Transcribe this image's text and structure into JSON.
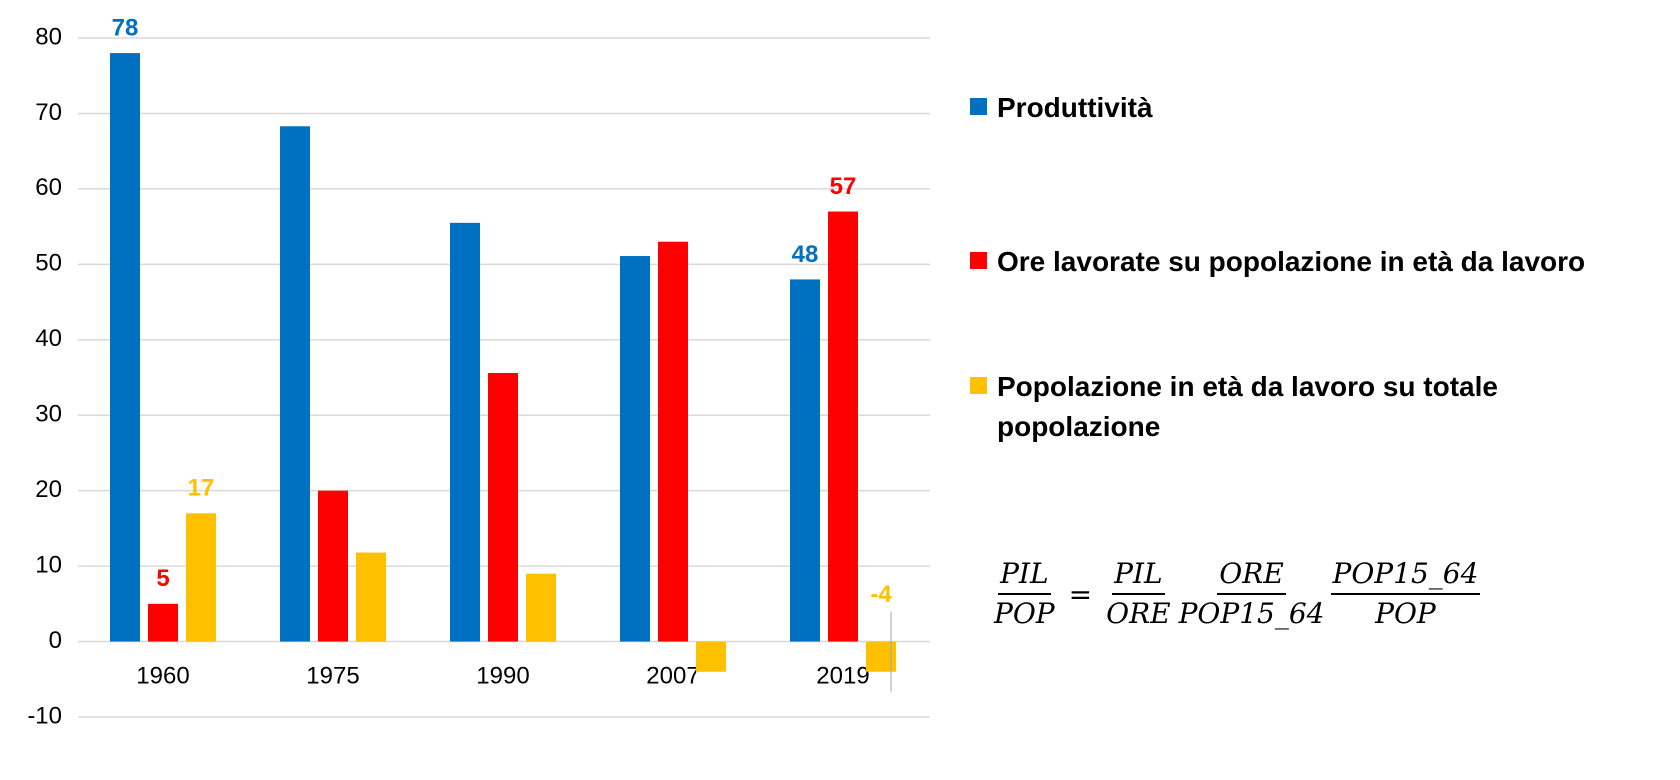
{
  "chart_data": {
    "type": "bar",
    "categories": [
      "1960",
      "1975",
      "1990",
      "2007",
      "2019"
    ],
    "series": [
      {
        "name": "Produttività",
        "color": "#0070c0",
        "values": [
          78,
          68.3,
          55.5,
          51.1,
          48
        ],
        "value_labels": [
          "78",
          null,
          null,
          null,
          "48"
        ]
      },
      {
        "name": "Ore lavorate su popolazione in età da lavoro",
        "color": "#ff0000",
        "values": [
          5,
          20,
          35.6,
          53,
          57
        ],
        "value_labels": [
          "5",
          null,
          null,
          null,
          "57"
        ]
      },
      {
        "name": "Popolazione in età da lavoro su totale popolazione",
        "color": "#ffc000",
        "values": [
          17,
          11.8,
          9,
          -4,
          -4
        ],
        "value_labels": [
          "17",
          null,
          null,
          null,
          "-4"
        ]
      }
    ],
    "ylim": [
      -10,
      80
    ],
    "yticks": [
      -10,
      0,
      10,
      20,
      30,
      40,
      50,
      60,
      70,
      80
    ],
    "grid": true,
    "legend": "right",
    "formula": {
      "lhs": {
        "num": "PIL",
        "den": "POP"
      },
      "equals": "=",
      "terms": [
        {
          "num": "PIL",
          "den": "ORE"
        },
        {
          "num": "ORE",
          "den": "POP15_64"
        },
        {
          "num": "POP15_64",
          "den": "POP"
        }
      ]
    }
  }
}
